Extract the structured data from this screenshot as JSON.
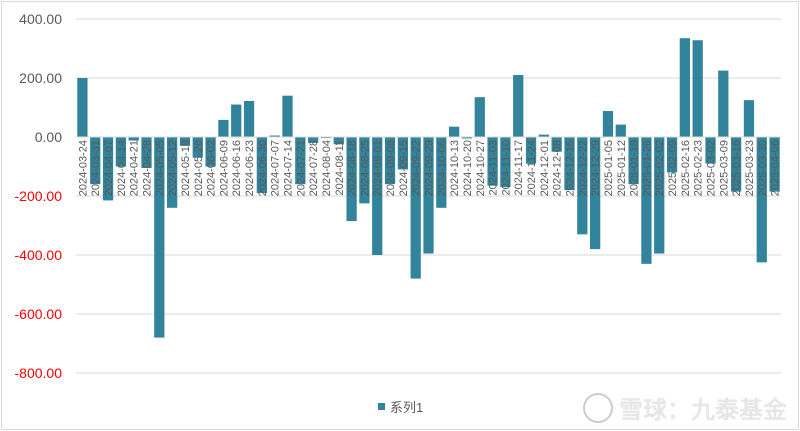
{
  "chart_data": {
    "type": "bar",
    "title": "",
    "xlabel": "",
    "ylabel": "",
    "ylim": [
      -800,
      400
    ],
    "yticks": [
      "400.00",
      "200.00",
      "0.00",
      "-200.00",
      "-400.00",
      "-600.00",
      "-800.00"
    ],
    "ytick_values": [
      400,
      200,
      0,
      -200,
      -400,
      -600,
      -800
    ],
    "negative_tick_color": "#ff0000",
    "positive_tick_color": "#595959",
    "bar_color": "#31849b",
    "grid": true,
    "legend_position": "bottom",
    "categories": [
      "2024-03-24",
      "2024-03-31",
      "2024-04-07",
      "2024-04-14",
      "2024-04-21",
      "2024-04-28",
      "2024-05-05",
      "2024-05-12",
      "2024-05-19",
      "2024-05-26",
      "2024-06-02",
      "2024-06-09",
      "2024-06-16",
      "2024-06-23",
      "2024-06-30",
      "2024-07-07",
      "2024-07-14",
      "2024-07-21",
      "2024-07-28",
      "2024-08-04",
      "2024-08-11",
      "2024-08-18",
      "2024-08-25",
      "2024-09-01",
      "2024-09-08",
      "2024-09-15",
      "2024-09-22",
      "2024-09-29",
      "2024-10-06",
      "2024-10-13",
      "2024-10-20",
      "2024-10-27",
      "2024-11-03",
      "2024-11-10",
      "2024-11-17",
      "2024-11-24",
      "2024-12-01",
      "2024-12-08",
      "2024-12-15",
      "2024-12-22",
      "2024-12-29",
      "2025-01-05",
      "2025-01-12",
      "2025-01-19",
      "2025-01-26",
      "2025-02-02",
      "2025-02-09",
      "2025-02-16",
      "2025-02-23",
      "2025-03-02",
      "2025-03-09",
      "2025-03-16",
      "2025-03-23",
      "2025-03-30",
      "2025-04-06"
    ],
    "series": [
      {
        "name": "系列1",
        "values": [
          200,
          -160,
          -215,
          -100,
          -12,
          -105,
          -680,
          -240,
          -30,
          -70,
          -100,
          58,
          110,
          122,
          -190,
          5,
          140,
          -160,
          -20,
          -3,
          -25,
          -285,
          -225,
          -400,
          -160,
          -110,
          -480,
          -395,
          -240,
          35,
          -5,
          135,
          -165,
          -170,
          210,
          -90,
          8,
          -50,
          -180,
          -330,
          -380,
          88,
          42,
          -160,
          -430,
          -395,
          -120,
          335,
          328,
          -90,
          225,
          -185,
          125,
          -425,
          -185
        ]
      }
    ]
  },
  "legend": {
    "label": "系列1"
  },
  "watermark": {
    "text": "雪球：九泰基金"
  }
}
